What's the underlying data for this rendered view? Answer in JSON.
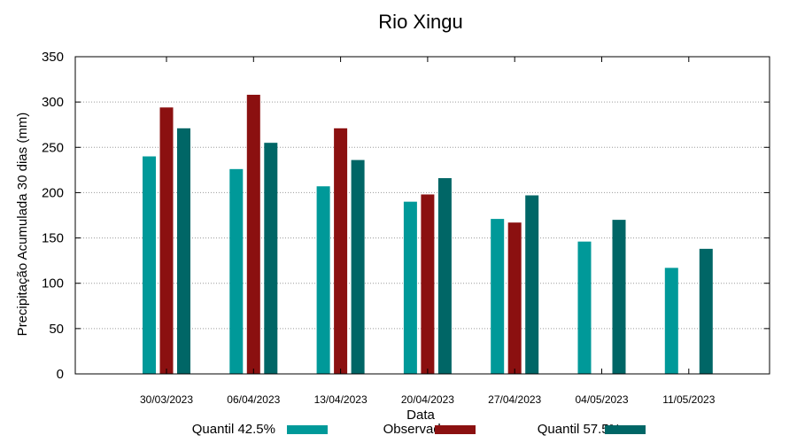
{
  "chart_data": {
    "type": "bar",
    "title": "Rio Xingu",
    "xlabel": "Data",
    "ylabel": "Precipitação Acumulada 30 dias (mm)",
    "ylim": [
      0,
      350
    ],
    "yticks": [
      0,
      50,
      100,
      150,
      200,
      250,
      300,
      350
    ],
    "grid": true,
    "legend_position": "bottom",
    "categories": [
      "30/03/2023",
      "06/04/2023",
      "13/04/2023",
      "20/04/2023",
      "27/04/2023",
      "04/05/2023",
      "11/05/2023"
    ],
    "series": [
      {
        "name": "Quantil 42.5%",
        "color": "#009999",
        "values": [
          240,
          226,
          207,
          190,
          171,
          146,
          117
        ]
      },
      {
        "name": "Observado",
        "color": "#8b1010",
        "values": [
          294,
          308,
          271,
          198,
          167,
          null,
          null
        ]
      },
      {
        "name": "Quantil 57.5%",
        "color": "#006666",
        "values": [
          271,
          255,
          236,
          216,
          197,
          170,
          138
        ]
      }
    ]
  }
}
